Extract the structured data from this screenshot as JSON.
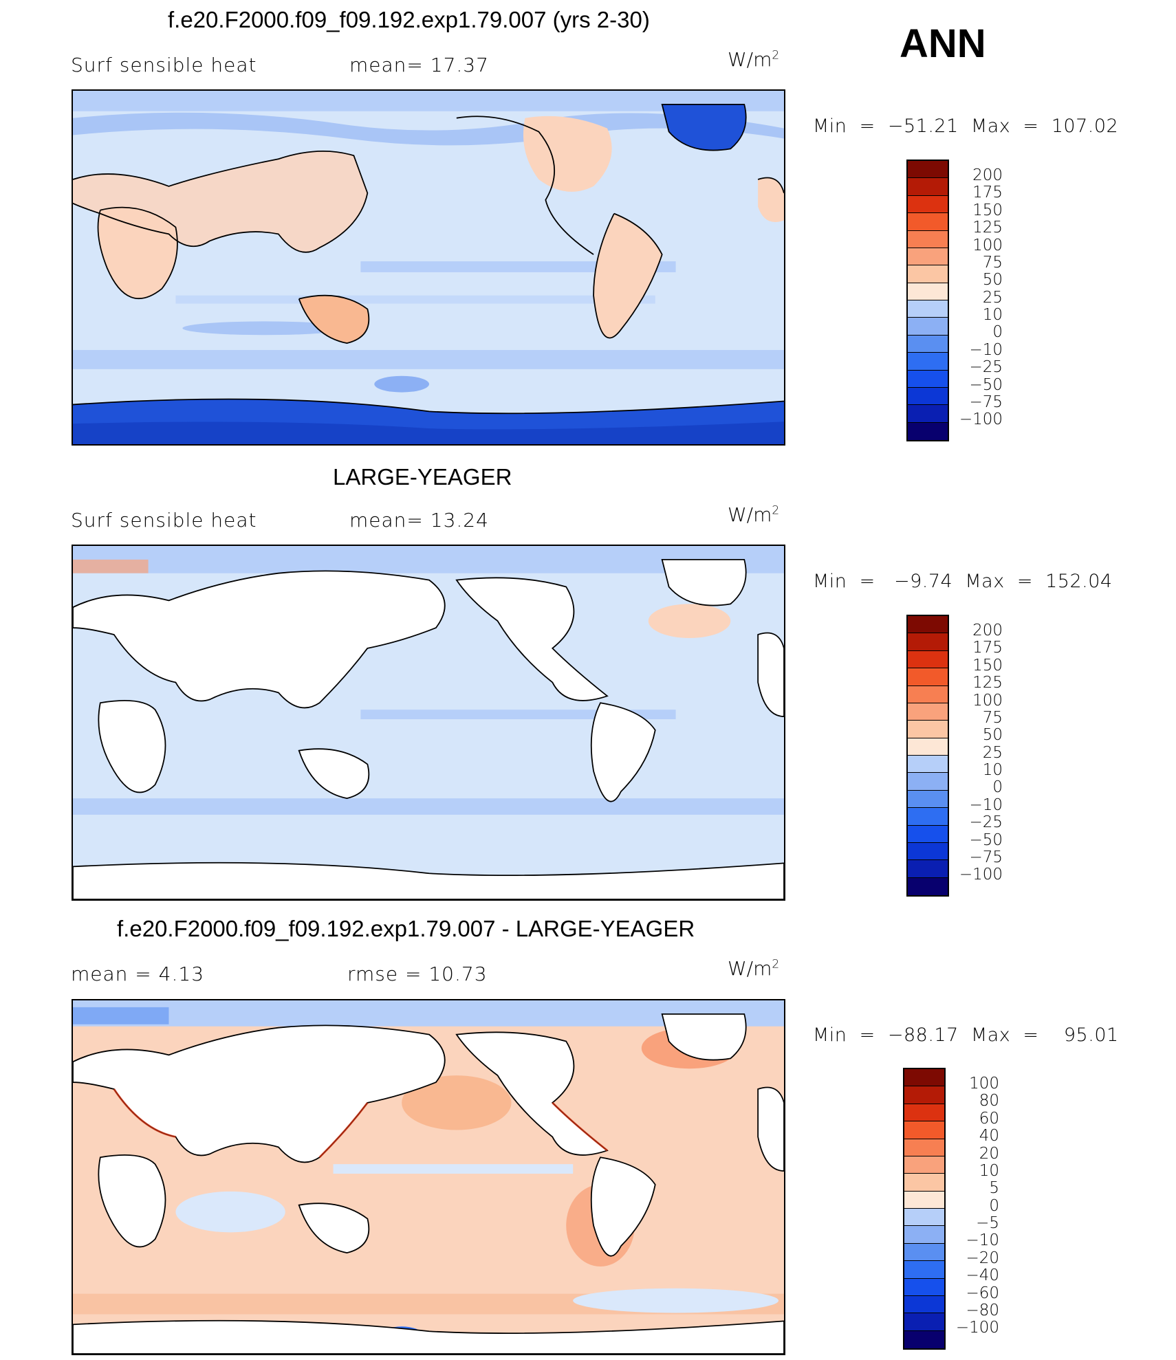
{
  "season": "ANN",
  "palette": {
    "diverging": [
      "#08006e",
      "#0a1fb2",
      "#0c37d6",
      "#1650ec",
      "#2e6ef2",
      "#5a8ff1",
      "#8cb0f4",
      "#b6cff9",
      "#dae8fb",
      "#fde7d6",
      "#fbc6a4",
      "#f9a27c",
      "#f77f52",
      "#f25a2a",
      "#dc3210",
      "#b41b06",
      "#7d0a02"
    ],
    "land_blank": "#ffffff",
    "ocean_cool": "#d6e6fa",
    "ocean_cooler": "#a9c5f6",
    "warm": "#fbd4bd",
    "cold": "#1f52d8"
  },
  "panels": [
    {
      "title": "f.e20.F2000.f09_f09.192.exp1.79.007 (yrs 2-30)",
      "left_label": "Surf  sensible  heat",
      "middle_label": "mean=   17.37",
      "units": "W/m",
      "units_exp": "2",
      "minmax": "Min  =  −51.21  Max  =  107.02",
      "colorbar": [
        "200",
        "175",
        "150",
        "125",
        "100",
        "75",
        "50",
        "25",
        "10",
        "0",
        "−10",
        "−25",
        "−50",
        "−75",
        "−100"
      ]
    },
    {
      "title": "LARGE-YEAGER",
      "left_label": "Surf  sensible  heat",
      "middle_label": "mean=   13.24",
      "units": "W/m",
      "units_exp": "2",
      "minmax": "Min  =   −9.74  Max  =  152.04",
      "colorbar": [
        "200",
        "175",
        "150",
        "125",
        "100",
        "75",
        "50",
        "25",
        "10",
        "0",
        "−10",
        "−25",
        "−50",
        "−75",
        "−100"
      ]
    },
    {
      "title": "f.e20.F2000.f09_f09.192.exp1.79.007 - LARGE-YEAGER",
      "left_label": "mean  =      4.13",
      "middle_label": "rmse  =     10.73",
      "units": "W/m",
      "units_exp": "2",
      "minmax": "Min  =  −88.17  Max  =    95.01",
      "colorbar": [
        "100",
        "80",
        "60",
        "40",
        "20",
        "10",
        "5",
        "0",
        "−5",
        "−10",
        "−20",
        "−40",
        "−60",
        "−80",
        "−100"
      ]
    }
  ]
}
